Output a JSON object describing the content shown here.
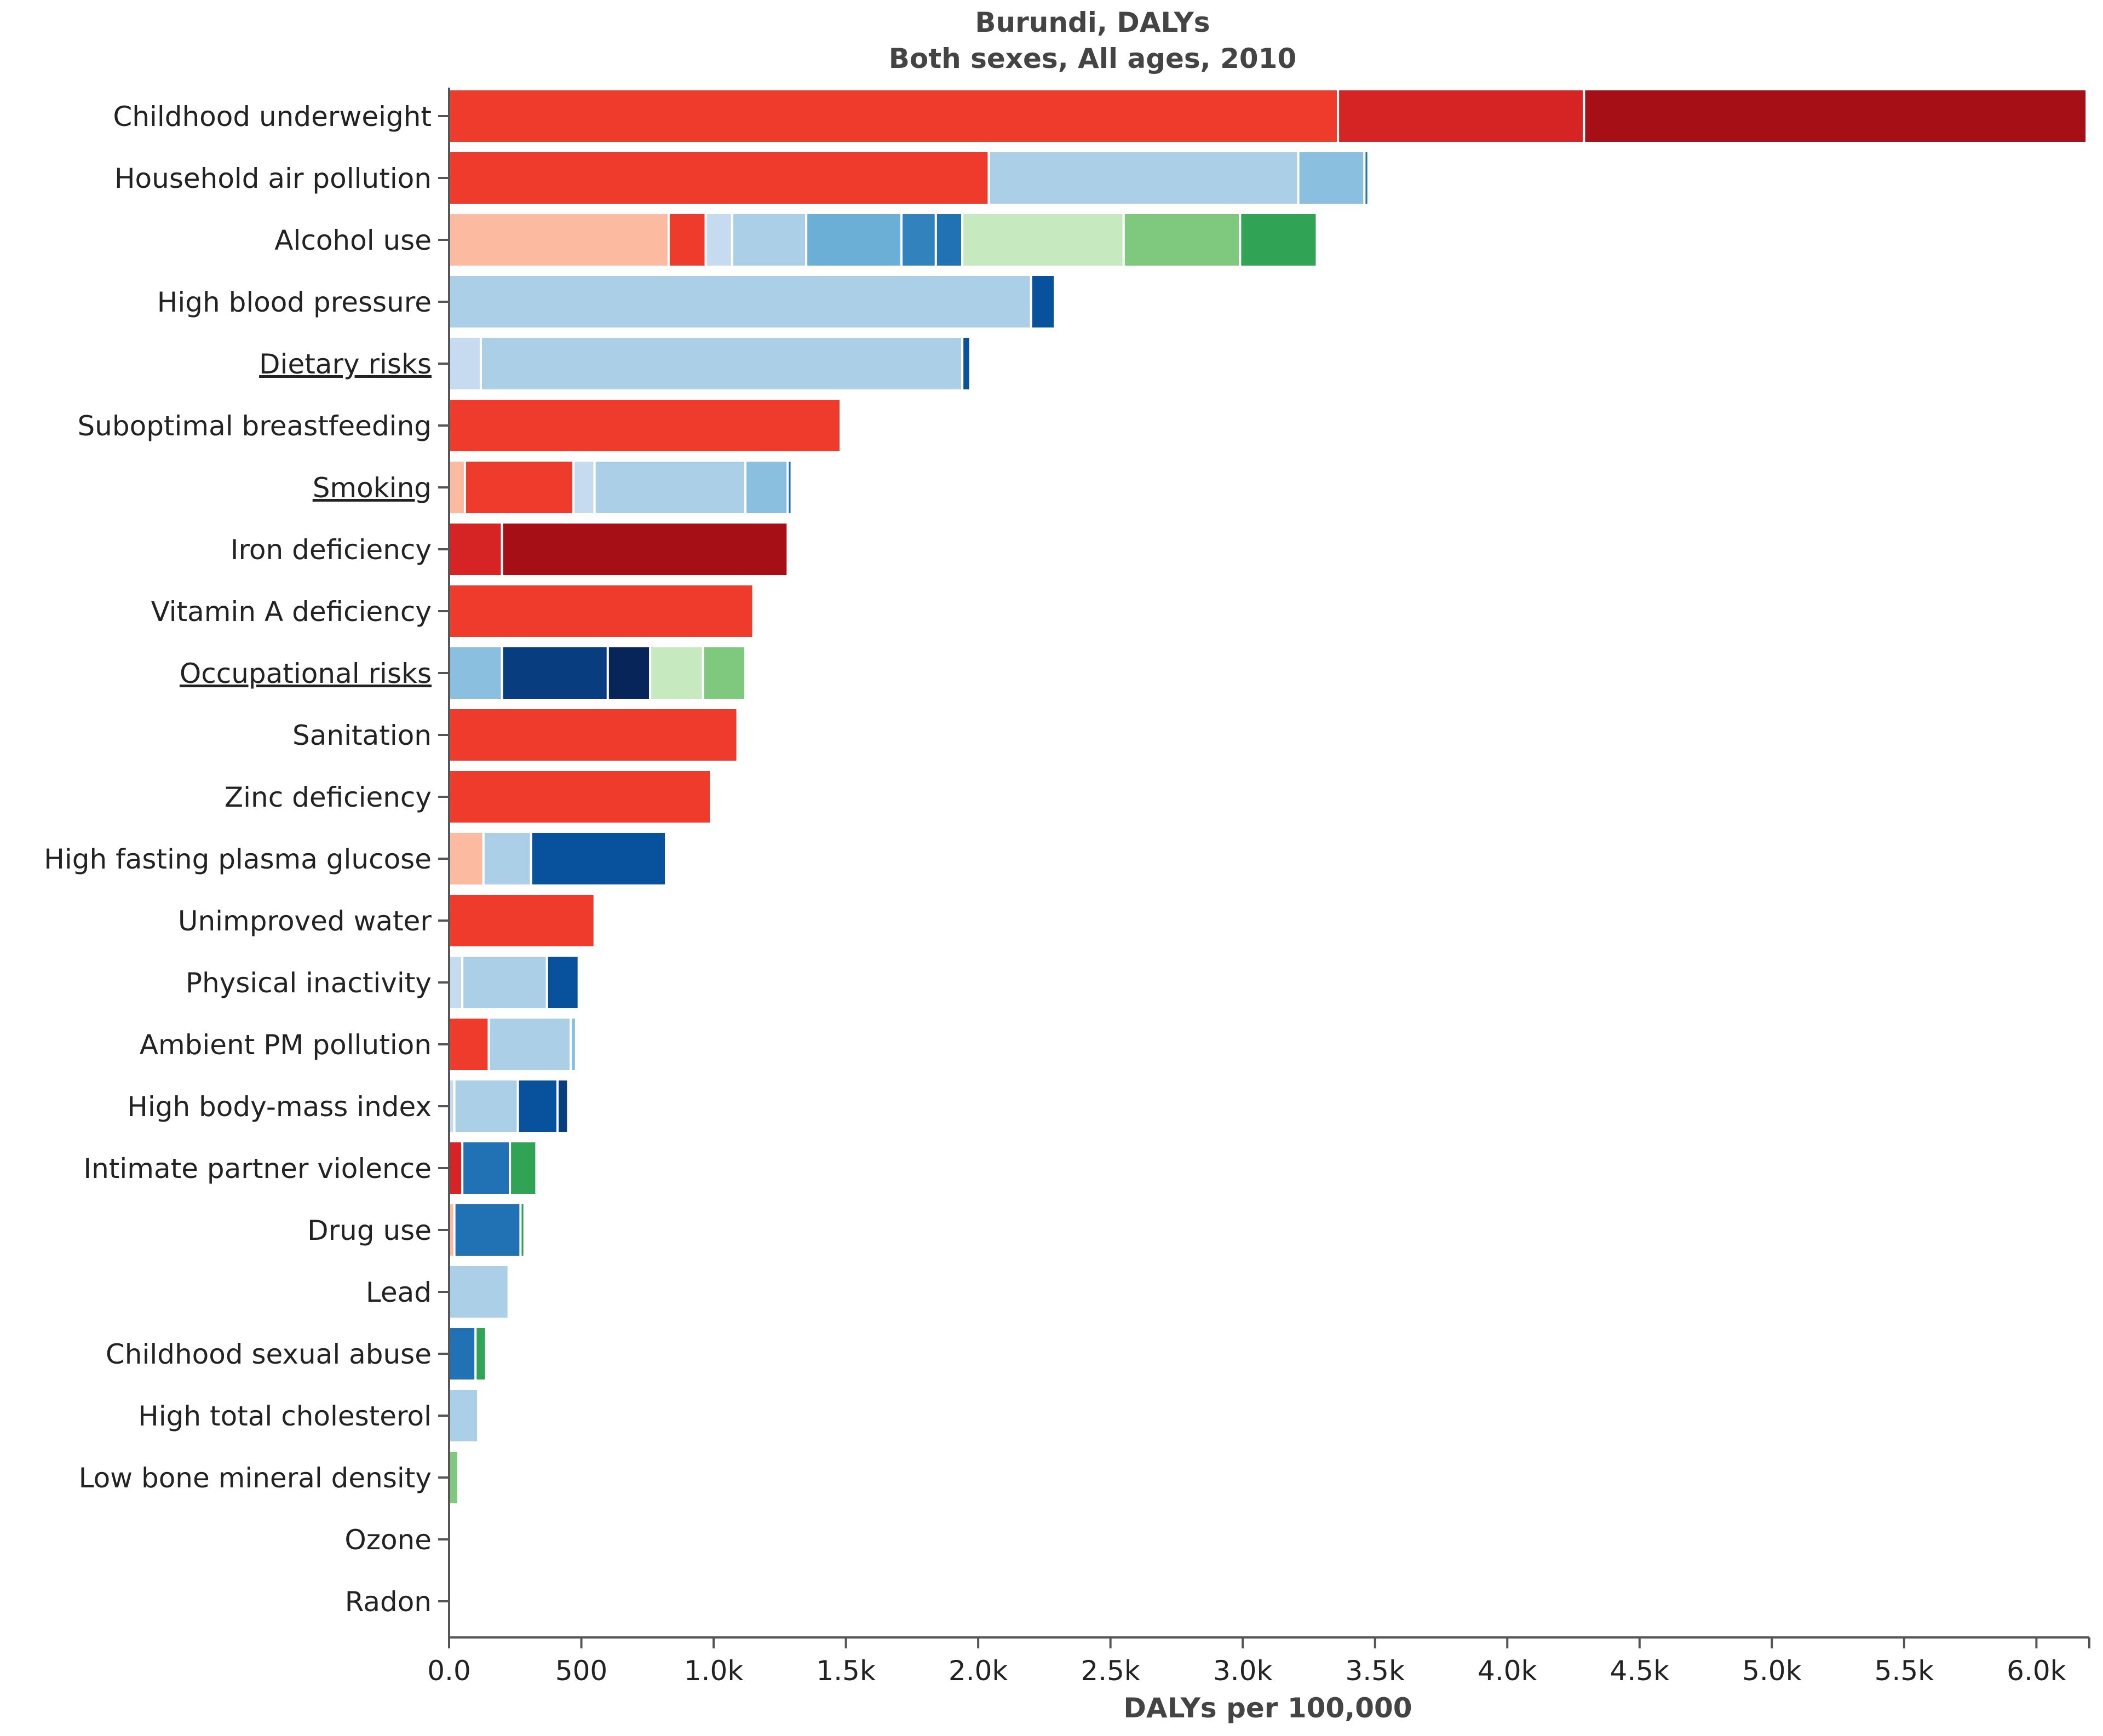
{
  "chart_data": {
    "type": "bar",
    "orientation": "horizontal",
    "stacked": true,
    "title": "Burundi, DALYs",
    "subtitle": "Both sexes, All ages, 2010",
    "xlabel": "DALYs per 100,000",
    "ylabel": "",
    "xlim": [
      0,
      6200
    ],
    "xticks": [
      {
        "value": 0,
        "label": "0.0"
      },
      {
        "value": 500,
        "label": "500"
      },
      {
        "value": 1000,
        "label": "1.0k"
      },
      {
        "value": 1500,
        "label": "1.5k"
      },
      {
        "value": 2000,
        "label": "2.0k"
      },
      {
        "value": 2500,
        "label": "2.5k"
      },
      {
        "value": 3000,
        "label": "3.0k"
      },
      {
        "value": 3500,
        "label": "3.5k"
      },
      {
        "value": 4000,
        "label": "4.0k"
      },
      {
        "value": 4500,
        "label": "4.5k"
      },
      {
        "value": 5000,
        "label": "5.0k"
      },
      {
        "value": 5500,
        "label": "5.5k"
      },
      {
        "value": 6000,
        "label": "6.0k"
      }
    ],
    "grid": false,
    "categories": [
      {
        "label": "Childhood underweight",
        "link": false,
        "segments": [
          {
            "value": 3360,
            "color": "#ef3b2c"
          },
          {
            "value": 930,
            "color": "#d62323"
          },
          {
            "value": 1900,
            "color": "#a50f15"
          }
        ]
      },
      {
        "label": "Household air pollution",
        "link": false,
        "segments": [
          {
            "value": 2040,
            "color": "#ef3b2c"
          },
          {
            "value": 1170,
            "color": "#abcfe6"
          },
          {
            "value": 250,
            "color": "#8abfe0"
          },
          {
            "value": 15,
            "color": "#2171b5"
          }
        ]
      },
      {
        "label": "Alcohol use",
        "link": false,
        "segments": [
          {
            "value": 830,
            "color": "#fcbba1"
          },
          {
            "value": 140,
            "color": "#ef3b2c"
          },
          {
            "value": 100,
            "color": "#c6dbef"
          },
          {
            "value": 280,
            "color": "#abcfe6"
          },
          {
            "value": 360,
            "color": "#6baed6"
          },
          {
            "value": 130,
            "color": "#3182bd"
          },
          {
            "value": 100,
            "color": "#2171b5"
          },
          {
            "value": 610,
            "color": "#c7e9c0"
          },
          {
            "value": 440,
            "color": "#7fc97f"
          },
          {
            "value": 290,
            "color": "#31a354"
          }
        ]
      },
      {
        "label": "High blood pressure",
        "link": false,
        "segments": [
          {
            "value": 2200,
            "color": "#abcfe6"
          },
          {
            "value": 90,
            "color": "#08519c"
          }
        ]
      },
      {
        "label": "Dietary risks",
        "link": true,
        "segments": [
          {
            "value": 120,
            "color": "#c6dbef"
          },
          {
            "value": 1820,
            "color": "#abcfe6"
          },
          {
            "value": 30,
            "color": "#08519c"
          }
        ]
      },
      {
        "label": "Suboptimal breastfeeding",
        "link": false,
        "segments": [
          {
            "value": 1480,
            "color": "#ef3b2c"
          }
        ]
      },
      {
        "label": "Smoking",
        "link": true,
        "segments": [
          {
            "value": 60,
            "color": "#fcbba1"
          },
          {
            "value": 410,
            "color": "#ef3b2c"
          },
          {
            "value": 80,
            "color": "#c6dbef"
          },
          {
            "value": 570,
            "color": "#abcfe6"
          },
          {
            "value": 160,
            "color": "#8abfe0"
          },
          {
            "value": 15,
            "color": "#2171b5"
          }
        ]
      },
      {
        "label": "Iron deficiency",
        "link": false,
        "segments": [
          {
            "value": 200,
            "color": "#d62323"
          },
          {
            "value": 1080,
            "color": "#a50f15"
          }
        ]
      },
      {
        "label": "Vitamin A deficiency",
        "link": false,
        "segments": [
          {
            "value": 1150,
            "color": "#ef3b2c"
          }
        ]
      },
      {
        "label": "Occupational risks",
        "link": true,
        "segments": [
          {
            "value": 200,
            "color": "#8abfe0"
          },
          {
            "value": 400,
            "color": "#083d7f"
          },
          {
            "value": 160,
            "color": "#08255a"
          },
          {
            "value": 200,
            "color": "#c7e9c0"
          },
          {
            "value": 160,
            "color": "#7fc97f"
          }
        ]
      },
      {
        "label": "Sanitation",
        "link": false,
        "segments": [
          {
            "value": 1090,
            "color": "#ef3b2c"
          }
        ]
      },
      {
        "label": "Zinc deficiency",
        "link": false,
        "segments": [
          {
            "value": 990,
            "color": "#ef3b2c"
          }
        ]
      },
      {
        "label": "High fasting plasma glucose",
        "link": false,
        "segments": [
          {
            "value": 130,
            "color": "#fcbba1"
          },
          {
            "value": 180,
            "color": "#abcfe6"
          },
          {
            "value": 510,
            "color": "#08519c"
          }
        ]
      },
      {
        "label": "Unimproved water",
        "link": false,
        "segments": [
          {
            "value": 550,
            "color": "#ef3b2c"
          }
        ]
      },
      {
        "label": "Physical inactivity",
        "link": false,
        "segments": [
          {
            "value": 50,
            "color": "#c6dbef"
          },
          {
            "value": 320,
            "color": "#abcfe6"
          },
          {
            "value": 120,
            "color": "#08519c"
          }
        ]
      },
      {
        "label": "Ambient PM pollution",
        "link": false,
        "segments": [
          {
            "value": 150,
            "color": "#ef3b2c"
          },
          {
            "value": 310,
            "color": "#abcfe6"
          },
          {
            "value": 20,
            "color": "#8abfe0"
          }
        ]
      },
      {
        "label": "High body-mass index",
        "link": false,
        "segments": [
          {
            "value": 20,
            "color": "#c6dbef"
          },
          {
            "value": 240,
            "color": "#abcfe6"
          },
          {
            "value": 150,
            "color": "#08519c"
          },
          {
            "value": 40,
            "color": "#083d7f"
          }
        ]
      },
      {
        "label": "Intimate partner violence",
        "link": false,
        "segments": [
          {
            "value": 50,
            "color": "#d62323"
          },
          {
            "value": 180,
            "color": "#2171b5"
          },
          {
            "value": 100,
            "color": "#31a354"
          }
        ]
      },
      {
        "label": "Drug use",
        "link": false,
        "segments": [
          {
            "value": 20,
            "color": "#fcbba1"
          },
          {
            "value": 250,
            "color": "#2171b5"
          },
          {
            "value": 15,
            "color": "#31a354"
          }
        ]
      },
      {
        "label": "Lead",
        "link": false,
        "segments": [
          {
            "value": 225,
            "color": "#abcfe6"
          }
        ]
      },
      {
        "label": "Childhood sexual abuse",
        "link": false,
        "segments": [
          {
            "value": 100,
            "color": "#2171b5"
          },
          {
            "value": 40,
            "color": "#31a354"
          }
        ]
      },
      {
        "label": "High total cholesterol",
        "link": false,
        "segments": [
          {
            "value": 110,
            "color": "#abcfe6"
          }
        ]
      },
      {
        "label": "Low bone mineral density",
        "link": false,
        "segments": [
          {
            "value": 35,
            "color": "#7fc97f"
          }
        ]
      },
      {
        "label": "Ozone",
        "link": false,
        "segments": []
      },
      {
        "label": "Radon",
        "link": false,
        "segments": []
      }
    ]
  }
}
